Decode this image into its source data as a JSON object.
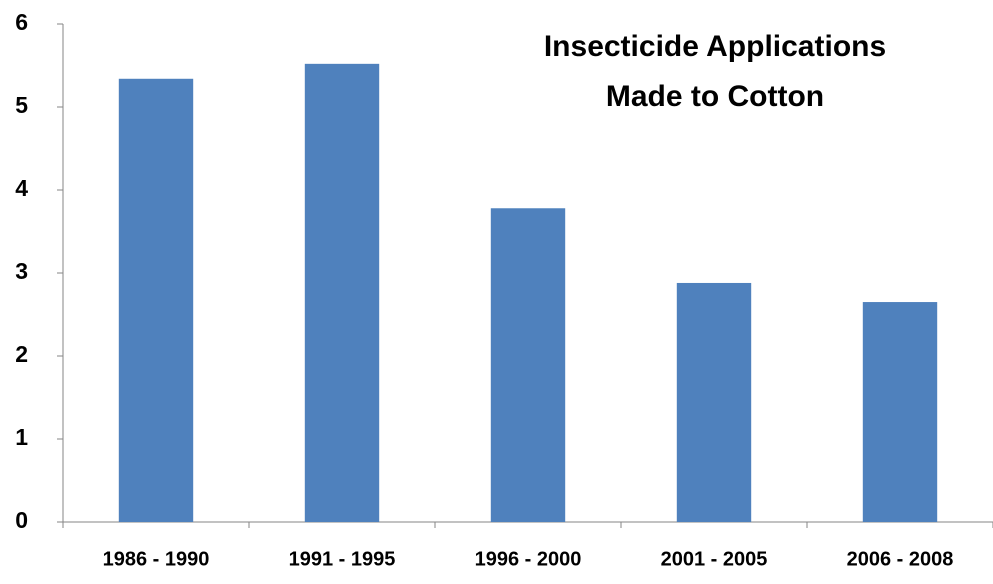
{
  "chart_data": {
    "type": "bar",
    "title": [
      "Insecticide Applications",
      "Made to Cotton"
    ],
    "categories": [
      "1986 - 1990",
      "1991 - 1995",
      "1996 - 2000",
      "2001 - 2005",
      "2006 - 2008"
    ],
    "values": [
      5.34,
      5.52,
      3.78,
      2.88,
      2.65
    ],
    "color": "#4f81bd",
    "ylim": [
      0,
      6
    ],
    "yticks": [
      0,
      1,
      2,
      3,
      4,
      5,
      6
    ],
    "grid": false
  }
}
